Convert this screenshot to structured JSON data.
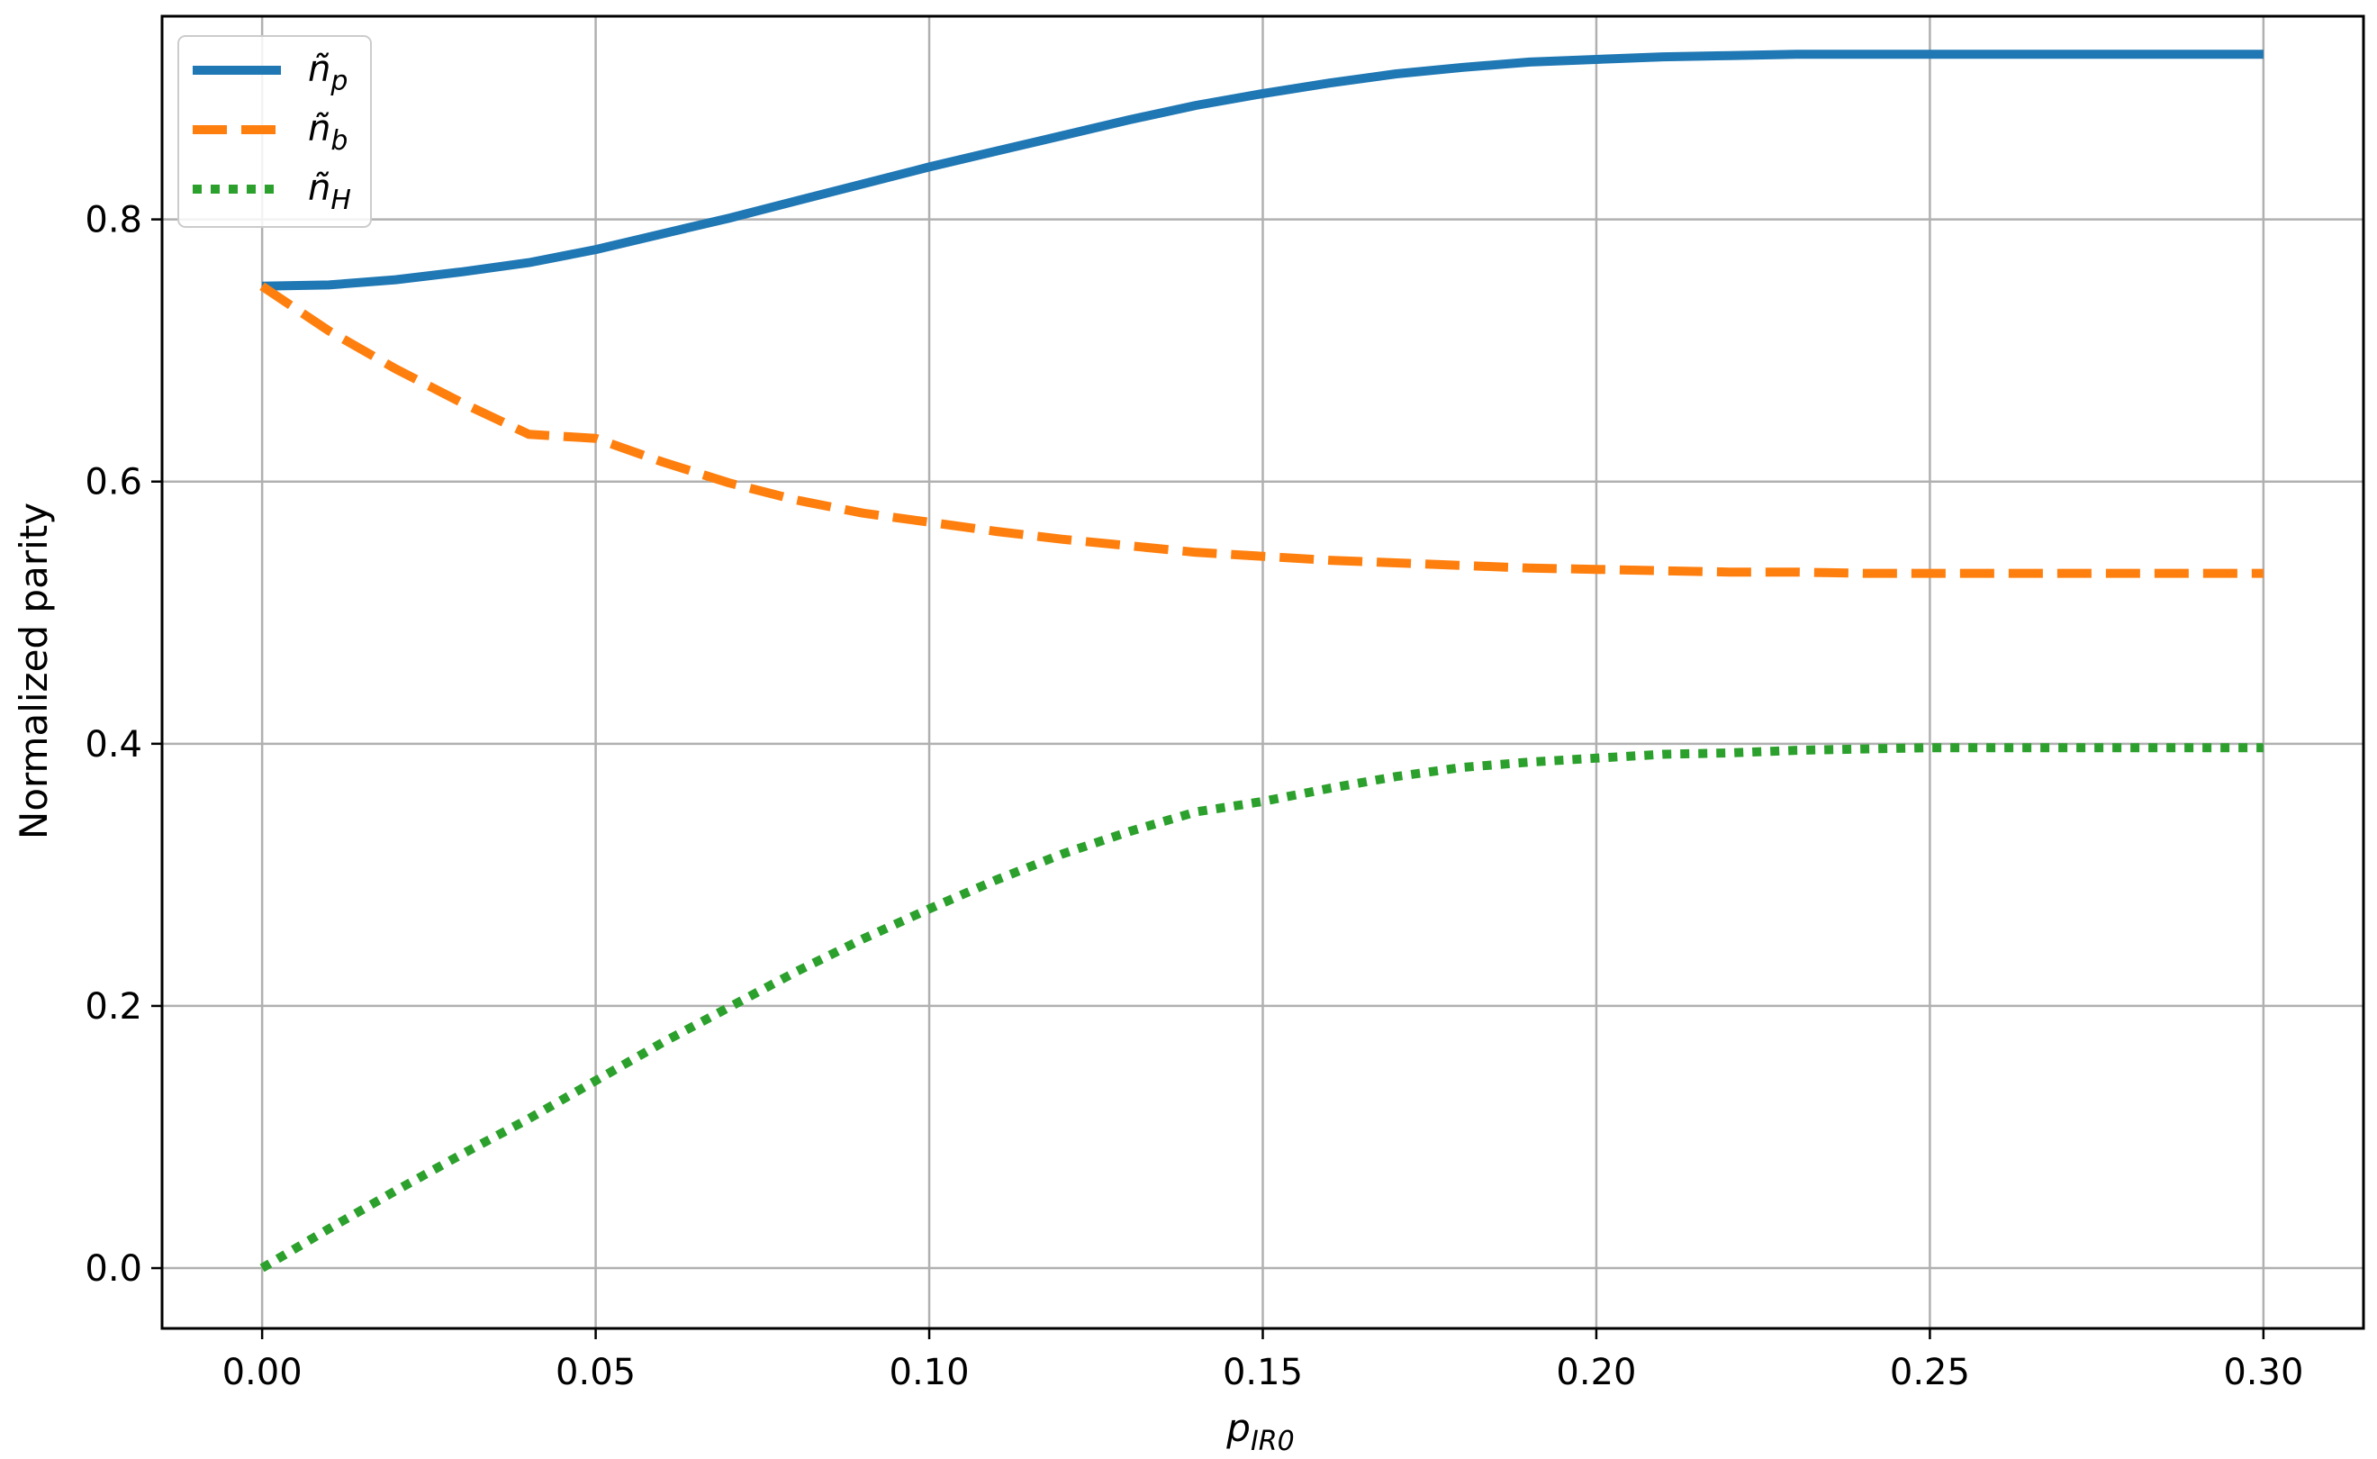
{
  "chart_data": {
    "type": "line",
    "title": "",
    "xlabel": "p",
    "xlabel_subscript": "IR0",
    "ylabel": "Normalized parity",
    "xlim": [
      -0.015,
      0.315
    ],
    "ylim": [
      -0.046,
      0.955
    ],
    "xticks": [
      0.0,
      0.05,
      0.1,
      0.15,
      0.2,
      0.25,
      0.3
    ],
    "xtick_labels": [
      "0.00",
      "0.05",
      "0.10",
      "0.15",
      "0.20",
      "0.25",
      "0.30"
    ],
    "yticks": [
      0.0,
      0.2,
      0.4,
      0.6,
      0.8
    ],
    "ytick_labels": [
      "0.0",
      "0.2",
      "0.4",
      "0.6",
      "0.8"
    ],
    "grid": true,
    "legend_position": "top-left",
    "x": [
      0.0,
      0.01,
      0.02,
      0.03,
      0.04,
      0.05,
      0.06,
      0.07,
      0.08,
      0.09,
      0.1,
      0.11,
      0.12,
      0.13,
      0.14,
      0.15,
      0.16,
      0.17,
      0.18,
      0.19,
      0.2,
      0.21,
      0.22,
      0.23,
      0.24,
      0.25,
      0.26,
      0.27,
      0.28,
      0.29,
      0.3
    ],
    "series": [
      {
        "name": "ñ",
        "name_subscript": "p",
        "color": "#1f77b4",
        "style": "solid",
        "values": [
          0.749,
          0.75,
          0.754,
          0.76,
          0.767,
          0.777,
          0.789,
          0.801,
          0.814,
          0.827,
          0.84,
          0.852,
          0.864,
          0.876,
          0.887,
          0.896,
          0.904,
          0.911,
          0.916,
          0.92,
          0.922,
          0.924,
          0.925,
          0.926,
          0.926,
          0.926,
          0.926,
          0.926,
          0.926,
          0.926,
          0.926
        ]
      },
      {
        "name": "ñ",
        "name_subscript": "b",
        "color": "#ff7f0e",
        "style": "dashed",
        "values": [
          0.749,
          0.715,
          0.686,
          0.66,
          0.636,
          0.633,
          0.615,
          0.599,
          0.586,
          0.576,
          0.569,
          0.562,
          0.556,
          0.551,
          0.546,
          0.543,
          0.54,
          0.538,
          0.536,
          0.534,
          0.533,
          0.532,
          0.531,
          0.531,
          0.53,
          0.53,
          0.53,
          0.53,
          0.53,
          0.53,
          0.53
        ]
      },
      {
        "name": "ñ",
        "name_subscript": "H",
        "color": "#2ca02c",
        "style": "dotted",
        "values": [
          0.0,
          0.03,
          0.059,
          0.087,
          0.114,
          0.143,
          0.172,
          0.199,
          0.226,
          0.251,
          0.274,
          0.296,
          0.316,
          0.333,
          0.348,
          0.356,
          0.366,
          0.375,
          0.382,
          0.386,
          0.389,
          0.392,
          0.393,
          0.395,
          0.396,
          0.397,
          0.397,
          0.397,
          0.397,
          0.397,
          0.397
        ]
      }
    ]
  }
}
